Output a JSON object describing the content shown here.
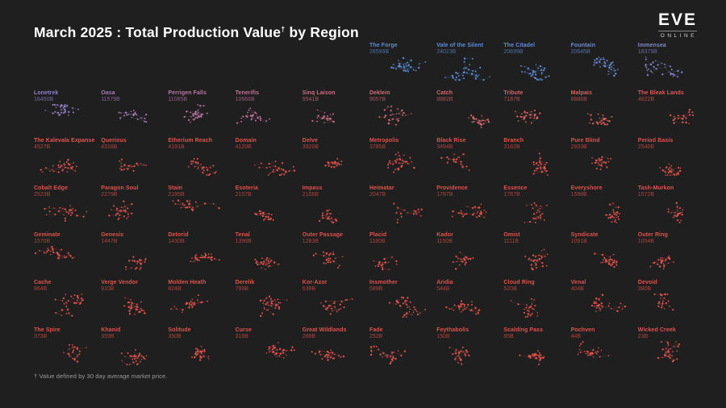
{
  "title": {
    "prefix": "March 2025 : Total Production Value",
    "dagger": "†",
    "suffix": "by Region"
  },
  "logo": {
    "name": "EVE",
    "sub": "ONLINE"
  },
  "footnote": "† Value defined by 30 day average market price.",
  "colors": {
    "background": "#1f1f20",
    "title_text": "#ffffff",
    "footnote_text": "#9b9b9b",
    "palette_high": "#5a8ed8",
    "palette_mid": "#a87cb6",
    "palette_low": "#e1524b"
  },
  "chart_data": {
    "type": "scatter",
    "title": "March 2025 : Total Production Value by Region",
    "subtitle": "Grid of per-region star-map clusters, sorted descending by production value",
    "value_unit": "B (billions ISK)",
    "layout": {
      "rows": 7,
      "cols": 10,
      "first_row_regions": 5,
      "first_row_start_col": 6,
      "sort": "descending by value",
      "color_scale": "blue (high) through purple/pink to red (low)"
    },
    "regions": [
      {
        "name": "The Forge",
        "value": 26599,
        "label": "26599B",
        "color": "#5a8ed8"
      },
      {
        "name": "Vale of the Silent",
        "value": 24023,
        "label": "24023B",
        "color": "#5a8ed8"
      },
      {
        "name": "The Citadel",
        "value": 20699,
        "label": "20699B",
        "color": "#608cd5"
      },
      {
        "name": "Fountain",
        "value": 20645,
        "label": "20645B",
        "color": "#6c8cd3"
      },
      {
        "name": "Immensea",
        "value": 18379,
        "label": "18379B",
        "color": "#8187cb"
      },
      {
        "name": "Lonetrek",
        "value": 16450,
        "label": "16450B",
        "color": "#9381c6"
      },
      {
        "name": "Oasa",
        "value": 11579,
        "label": "11579B",
        "color": "#a87cb6"
      },
      {
        "name": "Perrigen Falls",
        "value": 11085,
        "label": "11085B",
        "color": "#b877a4"
      },
      {
        "name": "Tenerifis",
        "value": 10666,
        "label": "10666B",
        "color": "#c67394"
      },
      {
        "name": "Sinq Laison",
        "value": 9941,
        "label": "9941B",
        "color": "#ce6f86"
      },
      {
        "name": "Deklein",
        "value": 9057,
        "label": "9057B",
        "color": "#d56b7a"
      },
      {
        "name": "Catch",
        "value": 8882,
        "label": "8882B",
        "color": "#d9676e"
      },
      {
        "name": "Tribute",
        "value": 7187,
        "label": "7187B",
        "color": "#dc6365"
      },
      {
        "name": "Malpais",
        "value": 6886,
        "label": "6886B",
        "color": "#de5f5d"
      },
      {
        "name": "The Bleak Lands",
        "value": 4822,
        "label": "4822B",
        "color": "#e05a55"
      },
      {
        "name": "The Kalevala Expanse",
        "value": 4527,
        "label": "4527B",
        "color": "#e1564f"
      },
      {
        "name": "Querious",
        "value": 4316,
        "label": "4316B",
        "color": "#e1524b"
      },
      {
        "name": "Etherium Reach",
        "value": 4191,
        "label": "4191B",
        "color": "#e1524b"
      },
      {
        "name": "Domain",
        "value": 4120,
        "label": "4120B",
        "color": "#e1524b"
      },
      {
        "name": "Delve",
        "value": 3920,
        "label": "3920B",
        "color": "#e1524b"
      },
      {
        "name": "Metropolis",
        "value": 3785,
        "label": "3785B",
        "color": "#e1524b"
      },
      {
        "name": "Black Rise",
        "value": 3494,
        "label": "3494B",
        "color": "#e1524b"
      },
      {
        "name": "Branch",
        "value": 3182,
        "label": "3182B",
        "color": "#e1524b"
      },
      {
        "name": "Pure Blind",
        "value": 2933,
        "label": "2933B",
        "color": "#e1524b"
      },
      {
        "name": "Period Basis",
        "value": 2540,
        "label": "2540B",
        "color": "#e1524b"
      },
      {
        "name": "Cobalt Edge",
        "value": 2523,
        "label": "2523B",
        "color": "#e1524b"
      },
      {
        "name": "Paragon Soul",
        "value": 2279,
        "label": "2279B",
        "color": "#e1524b"
      },
      {
        "name": "Stain",
        "value": 2195,
        "label": "2195B",
        "color": "#e1524b"
      },
      {
        "name": "Esoteria",
        "value": 2157,
        "label": "2157B",
        "color": "#e1524b"
      },
      {
        "name": "Impass",
        "value": 2106,
        "label": "2106B",
        "color": "#e1524b"
      },
      {
        "name": "Heimatar",
        "value": 2047,
        "label": "2047B",
        "color": "#e1524b"
      },
      {
        "name": "Providence",
        "value": 1787,
        "label": "1787B",
        "color": "#e1524b"
      },
      {
        "name": "Essence",
        "value": 1787,
        "label": "1787B",
        "color": "#e1524b"
      },
      {
        "name": "Everyshore",
        "value": 1598,
        "label": "1598B",
        "color": "#e1524b"
      },
      {
        "name": "Tash-Murkon",
        "value": 1572,
        "label": "1572B",
        "color": "#e1524b"
      },
      {
        "name": "Geminate",
        "value": 1570,
        "label": "1570B",
        "color": "#e1524b"
      },
      {
        "name": "Genesis",
        "value": 1447,
        "label": "1447B",
        "color": "#e1524b"
      },
      {
        "name": "Detorid",
        "value": 1430,
        "label": "1430B",
        "color": "#e1524b"
      },
      {
        "name": "Tenal",
        "value": 1396,
        "label": "1396B",
        "color": "#e1524b"
      },
      {
        "name": "Outer Passage",
        "value": 1283,
        "label": "1283B",
        "color": "#e1524b"
      },
      {
        "name": "Placid",
        "value": 1180,
        "label": "1180B",
        "color": "#e1524b"
      },
      {
        "name": "Kador",
        "value": 1150,
        "label": "1150B",
        "color": "#e1524b"
      },
      {
        "name": "Omist",
        "value": 1111,
        "label": "1111B",
        "color": "#e1524b"
      },
      {
        "name": "Syndicate",
        "value": 1091,
        "label": "1091B",
        "color": "#e1524b"
      },
      {
        "name": "Outer Ring",
        "value": 1054,
        "label": "1054B",
        "color": "#e1524b"
      },
      {
        "name": "Cache",
        "value": 964,
        "label": "964B",
        "color": "#e1524b"
      },
      {
        "name": "Verge Vendor",
        "value": 910,
        "label": "910B",
        "color": "#e1524b"
      },
      {
        "name": "Molden Heath",
        "value": 824,
        "label": "824B",
        "color": "#e1524b"
      },
      {
        "name": "Derelik",
        "value": 799,
        "label": "799B",
        "color": "#e1524b"
      },
      {
        "name": "Kor-Azor",
        "value": 639,
        "label": "639B",
        "color": "#e1524b"
      },
      {
        "name": "Insmother",
        "value": 589,
        "label": "589B",
        "color": "#e1524b"
      },
      {
        "name": "Aridia",
        "value": 544,
        "label": "544B",
        "color": "#e1524b"
      },
      {
        "name": "Cloud Ring",
        "value": 520,
        "label": "520B",
        "color": "#e1524b"
      },
      {
        "name": "Venal",
        "value": 404,
        "label": "404B",
        "color": "#e1524b"
      },
      {
        "name": "Devoid",
        "value": 380,
        "label": "380B",
        "color": "#e1524b"
      },
      {
        "name": "The Spire",
        "value": 373,
        "label": "373B",
        "color": "#e1524b"
      },
      {
        "name": "Khanid",
        "value": 359,
        "label": "359B",
        "color": "#e1524b"
      },
      {
        "name": "Solitude",
        "value": 350,
        "label": "350B",
        "color": "#e1524b"
      },
      {
        "name": "Curse",
        "value": 316,
        "label": "316B",
        "color": "#e1524b"
      },
      {
        "name": "Great Wildlands",
        "value": 288,
        "label": "288B",
        "color": "#e1524b"
      },
      {
        "name": "Fade",
        "value": 252,
        "label": "252B",
        "color": "#e1524b"
      },
      {
        "name": "Feythabolis",
        "value": 150,
        "label": "150B",
        "color": "#e1524b"
      },
      {
        "name": "Scalding Pass",
        "value": 85,
        "label": "85B",
        "color": "#e1524b"
      },
      {
        "name": "Pochven",
        "value": 44,
        "label": "44B",
        "color": "#e1524b"
      },
      {
        "name": "Wicked Creek",
        "value": 23,
        "label": "23B",
        "color": "#e1524b"
      }
    ]
  }
}
